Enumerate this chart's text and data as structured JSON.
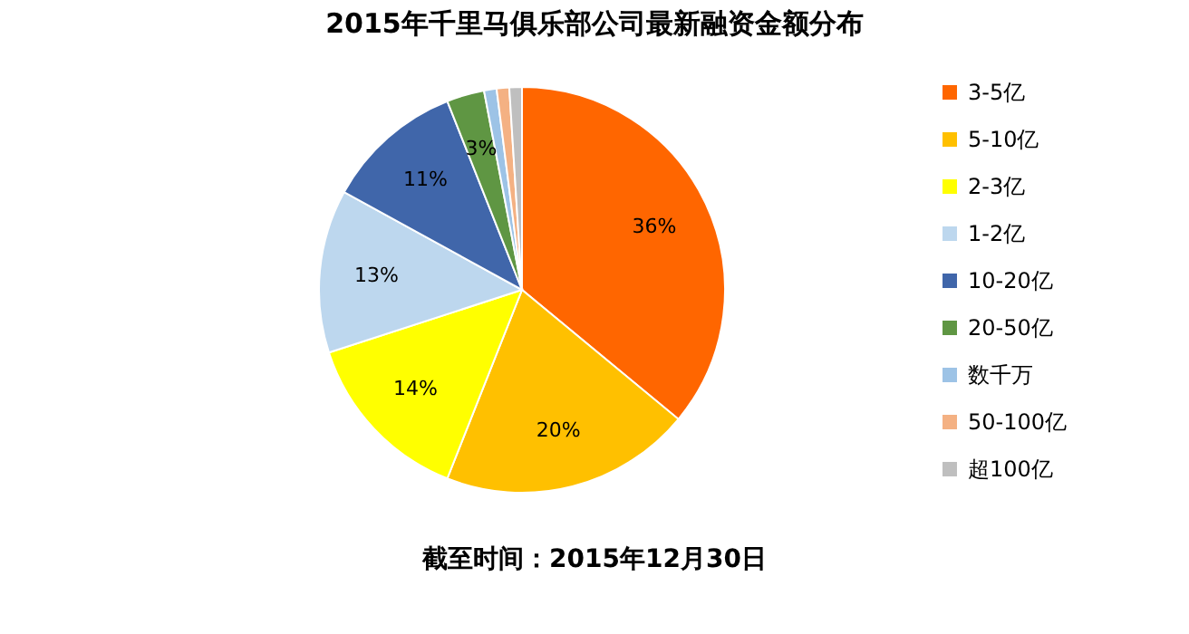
{
  "chart_data": {
    "type": "pie",
    "title": "2015年千里马俱乐部公司最新融资金额分布",
    "categories": [
      "3-5亿",
      "5-10亿",
      "2-3亿",
      "1-2亿",
      "10-20亿",
      "20-50亿",
      "数千万",
      "50-100亿",
      "超100亿"
    ],
    "values": [
      36,
      20,
      14,
      13,
      11,
      3,
      1,
      1,
      1
    ],
    "colors": [
      "#ff6600",
      "#ffc000",
      "#ffff00",
      "#bdd7ee",
      "#4066aa",
      "#5f9643",
      "#9dc3e6",
      "#f4b183",
      "#bfbfbf"
    ],
    "value_labels": [
      "36%",
      "20%",
      "14%",
      "13%",
      "11%",
      "3%",
      null,
      null,
      null
    ],
    "legend": "right",
    "annotations": [
      "截至时间：2015年12月30日"
    ]
  }
}
